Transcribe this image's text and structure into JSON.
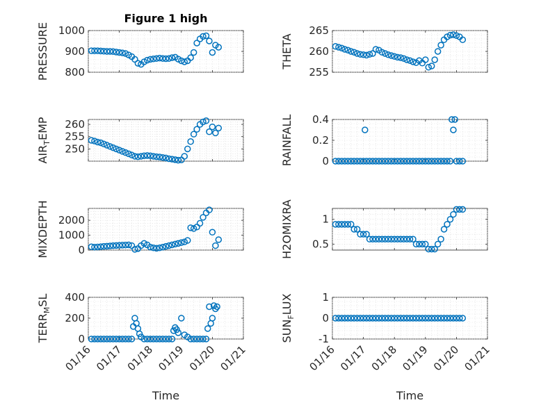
{
  "title": "Figure 1 high",
  "colors": {
    "series": "#0072bd",
    "axis": "#262626",
    "grid": "#d9d9d9"
  },
  "chart_data": [
    {
      "id": "pressure",
      "type": "scatter",
      "title": "Figure 1 high",
      "ylabel": "PRESSURE",
      "xlabel": "",
      "xlim": [
        0,
        5
      ],
      "ylim": [
        800,
        1000
      ],
      "yticks": [
        800,
        900,
        1000
      ],
      "xticks": [
        0,
        1,
        2,
        3,
        4,
        5
      ],
      "xticklabels": [
        "01/16",
        "01/17",
        "01/18",
        "01/19",
        "01/20",
        "01/21"
      ],
      "show_xticklabels": false,
      "grid": true,
      "x": [
        0.1,
        0.2,
        0.3,
        0.4,
        0.5,
        0.6,
        0.7,
        0.8,
        0.9,
        1.0,
        1.1,
        1.2,
        1.3,
        1.4,
        1.5,
        1.6,
        1.7,
        1.8,
        1.9,
        2.0,
        2.1,
        2.2,
        2.3,
        2.4,
        2.5,
        2.6,
        2.7,
        2.8,
        2.9,
        3.0,
        3.1,
        3.2,
        3.3,
        3.4,
        3.5,
        3.6,
        3.7,
        3.8,
        3.9,
        4.0,
        4.1,
        4.2
      ],
      "y": [
        903,
        903,
        903,
        902,
        901,
        900,
        900,
        899,
        897,
        895,
        893,
        890,
        883,
        875,
        862,
        843,
        838,
        850,
        858,
        862,
        864,
        866,
        868,
        866,
        865,
        866,
        870,
        872,
        863,
        855,
        850,
        855,
        870,
        895,
        940,
        960,
        972,
        975,
        950,
        895,
        930,
        920
      ]
    },
    {
      "id": "theta",
      "type": "scatter",
      "title": "",
      "ylabel": "THETA",
      "xlabel": "",
      "xlim": [
        0,
        5
      ],
      "ylim": [
        255,
        265
      ],
      "yticks": [
        255,
        260,
        265
      ],
      "xticks": [
        0,
        1,
        2,
        3,
        4,
        5
      ],
      "xticklabels": [
        "01/16",
        "01/17",
        "01/18",
        "01/19",
        "01/20",
        "01/21"
      ],
      "show_xticklabels": false,
      "grid": true,
      "x": [
        0.1,
        0.2,
        0.3,
        0.4,
        0.5,
        0.6,
        0.7,
        0.8,
        0.9,
        1.0,
        1.1,
        1.2,
        1.3,
        1.4,
        1.5,
        1.6,
        1.7,
        1.8,
        1.9,
        2.0,
        2.1,
        2.2,
        2.3,
        2.4,
        2.5,
        2.6,
        2.7,
        2.8,
        2.9,
        3.0,
        3.1,
        3.2,
        3.3,
        3.4,
        3.5,
        3.6,
        3.7,
        3.8,
        3.9,
        4.0,
        4.1,
        4.2
      ],
      "y": [
        261.2,
        261.0,
        260.8,
        260.5,
        260.3,
        260.0,
        259.8,
        259.5,
        259.3,
        259.2,
        259.1,
        259.3,
        259.5,
        260.5,
        260.3,
        259.8,
        259.5,
        259.2,
        259.0,
        258.8,
        258.6,
        258.5,
        258.3,
        258.0,
        257.8,
        257.5,
        257.3,
        257.8,
        257.2,
        258.0,
        256.2,
        256.5,
        258.0,
        260.0,
        261.5,
        262.8,
        263.5,
        263.9,
        264.0,
        263.8,
        263.5,
        262.8
      ]
    },
    {
      "id": "air_temp",
      "type": "scatter",
      "title": "",
      "ylabel": "AIR_TEMP",
      "xlabel": "",
      "xlim": [
        0,
        5
      ],
      "ylim": [
        245,
        262
      ],
      "yticks": [
        250,
        255,
        260
      ],
      "xticks": [
        0,
        1,
        2,
        3,
        4,
        5
      ],
      "xticklabels": [
        "01/16",
        "01/17",
        "01/18",
        "01/19",
        "01/20",
        "01/21"
      ],
      "show_xticklabels": false,
      "grid": true,
      "x": [
        0.1,
        0.2,
        0.3,
        0.4,
        0.5,
        0.6,
        0.7,
        0.8,
        0.9,
        1.0,
        1.1,
        1.2,
        1.3,
        1.4,
        1.5,
        1.6,
        1.7,
        1.8,
        1.9,
        2.0,
        2.1,
        2.2,
        2.3,
        2.4,
        2.5,
        2.6,
        2.7,
        2.8,
        2.9,
        3.0,
        3.1,
        3.2,
        3.3,
        3.4,
        3.5,
        3.6,
        3.7,
        3.8,
        3.9,
        4.0,
        4.1,
        4.2
      ],
      "y": [
        253.5,
        253.2,
        252.8,
        252.5,
        252.0,
        251.5,
        251.0,
        250.5,
        250.0,
        249.5,
        249.0,
        248.5,
        248.0,
        247.5,
        247.0,
        246.8,
        247.0,
        247.2,
        247.3,
        247.2,
        247.0,
        246.8,
        246.7,
        246.5,
        246.3,
        246.0,
        245.8,
        245.6,
        245.4,
        245.5,
        247.0,
        250.0,
        253.0,
        256.0,
        258.0,
        260.0,
        261.0,
        261.5,
        257.0,
        259.0,
        256.5,
        258.5
      ]
    },
    {
      "id": "rainfall",
      "type": "scatter",
      "title": "",
      "ylabel": "RAINFALL",
      "xlabel": "",
      "xlim": [
        0,
        5
      ],
      "ylim": [
        0,
        0.4
      ],
      "yticks": [
        0,
        0.2,
        0.4
      ],
      "xticks": [
        0,
        1,
        2,
        3,
        4,
        5
      ],
      "xticklabels": [
        "01/16",
        "01/17",
        "01/18",
        "01/19",
        "01/20",
        "01/21"
      ],
      "show_xticklabels": false,
      "grid": true,
      "x": [
        0.1,
        0.2,
        0.3,
        0.4,
        0.5,
        0.6,
        0.7,
        0.8,
        0.9,
        1.0,
        1.05,
        1.1,
        1.2,
        1.3,
        1.4,
        1.5,
        1.6,
        1.7,
        1.8,
        1.9,
        2.0,
        2.1,
        2.2,
        2.3,
        2.4,
        2.5,
        2.6,
        2.7,
        2.8,
        2.9,
        3.0,
        3.1,
        3.2,
        3.3,
        3.4,
        3.5,
        3.6,
        3.7,
        3.8,
        3.85,
        3.9,
        3.95,
        4.0,
        4.1,
        4.2
      ],
      "y": [
        0,
        0,
        0,
        0,
        0,
        0,
        0,
        0,
        0,
        0,
        0.3,
        0,
        0,
        0,
        0,
        0,
        0,
        0,
        0,
        0,
        0,
        0,
        0,
        0,
        0,
        0,
        0,
        0,
        0,
        0,
        0,
        0,
        0,
        0,
        0,
        0,
        0,
        0,
        0,
        0.4,
        0.3,
        0.4,
        0,
        0,
        0
      ]
    },
    {
      "id": "mixdepth",
      "type": "scatter",
      "title": "",
      "ylabel": "MIXDEPTH",
      "xlabel": "",
      "xlim": [
        0,
        5
      ],
      "ylim": [
        0,
        2800
      ],
      "yticks": [
        0,
        1000,
        2000
      ],
      "xticks": [
        0,
        1,
        2,
        3,
        4,
        5
      ],
      "xticklabels": [
        "01/16",
        "01/17",
        "01/18",
        "01/19",
        "01/20",
        "01/21"
      ],
      "show_xticklabels": false,
      "grid": true,
      "x": [
        0.1,
        0.2,
        0.3,
        0.4,
        0.5,
        0.6,
        0.7,
        0.8,
        0.9,
        1.0,
        1.1,
        1.2,
        1.3,
        1.4,
        1.5,
        1.6,
        1.7,
        1.8,
        1.9,
        2.0,
        2.1,
        2.2,
        2.3,
        2.4,
        2.5,
        2.6,
        2.7,
        2.8,
        2.9,
        3.0,
        3.1,
        3.2,
        3.3,
        3.4,
        3.5,
        3.6,
        3.7,
        3.8,
        3.9,
        4.0,
        4.1,
        4.2
      ],
      "y": [
        220,
        200,
        210,
        230,
        250,
        260,
        280,
        300,
        310,
        320,
        330,
        340,
        350,
        300,
        50,
        100,
        300,
        450,
        350,
        200,
        150,
        120,
        150,
        200,
        250,
        300,
        350,
        400,
        450,
        500,
        550,
        650,
        1500,
        1450,
        1550,
        1800,
        2200,
        2500,
        2700,
        1200,
        300,
        700
      ]
    },
    {
      "id": "h2omixra",
      "type": "scatter",
      "title": "",
      "ylabel": "H2OMIXRA",
      "xlabel": "",
      "xlim": [
        0,
        5
      ],
      "ylim": [
        0.38,
        1.22
      ],
      "yticks": [
        0.5,
        1
      ],
      "xticks": [
        0,
        1,
        2,
        3,
        4,
        5
      ],
      "xticklabels": [
        "01/16",
        "01/17",
        "01/18",
        "01/19",
        "01/20",
        "01/21"
      ],
      "show_xticklabels": false,
      "grid": true,
      "x": [
        0.1,
        0.2,
        0.3,
        0.4,
        0.5,
        0.6,
        0.7,
        0.8,
        0.9,
        1.0,
        1.1,
        1.2,
        1.3,
        1.4,
        1.5,
        1.6,
        1.7,
        1.8,
        1.9,
        2.0,
        2.1,
        2.2,
        2.3,
        2.4,
        2.5,
        2.6,
        2.7,
        2.8,
        2.9,
        3.0,
        3.1,
        3.2,
        3.3,
        3.4,
        3.5,
        3.6,
        3.7,
        3.8,
        3.9,
        4.0,
        4.1,
        4.2
      ],
      "y": [
        0.9,
        0.9,
        0.9,
        0.9,
        0.9,
        0.9,
        0.8,
        0.8,
        0.7,
        0.7,
        0.7,
        0.6,
        0.6,
        0.6,
        0.6,
        0.6,
        0.6,
        0.6,
        0.6,
        0.6,
        0.6,
        0.6,
        0.6,
        0.6,
        0.6,
        0.6,
        0.5,
        0.5,
        0.5,
        0.5,
        0.4,
        0.4,
        0.4,
        0.5,
        0.6,
        0.8,
        0.9,
        1.0,
        1.1,
        1.2,
        1.2,
        1.2
      ]
    },
    {
      "id": "terr_msl",
      "type": "scatter",
      "title": "",
      "ylabel": "TERR_MSL",
      "xlabel": "Time",
      "xlim": [
        0,
        5
      ],
      "ylim": [
        0,
        400
      ],
      "yticks": [
        0,
        200,
        400
      ],
      "xticks": [
        0,
        1,
        2,
        3,
        4,
        5
      ],
      "xticklabels": [
        "01/16",
        "01/17",
        "01/18",
        "01/19",
        "01/20",
        "01/21"
      ],
      "show_xticklabels": true,
      "grid": true,
      "x": [
        0.1,
        0.2,
        0.3,
        0.4,
        0.5,
        0.6,
        0.7,
        0.8,
        0.9,
        1.0,
        1.1,
        1.2,
        1.3,
        1.4,
        1.45,
        1.5,
        1.55,
        1.6,
        1.65,
        1.7,
        1.8,
        1.9,
        2.0,
        2.1,
        2.2,
        2.3,
        2.4,
        2.5,
        2.6,
        2.7,
        2.75,
        2.8,
        2.85,
        2.9,
        3.0,
        3.1,
        3.2,
        3.3,
        3.4,
        3.5,
        3.6,
        3.7,
        3.8,
        3.85,
        3.9,
        3.95,
        4.0,
        4.05,
        4.1,
        4.15
      ],
      "y": [
        0,
        0,
        0,
        0,
        0,
        0,
        0,
        0,
        0,
        0,
        0,
        0,
        0,
        0,
        120,
        200,
        150,
        100,
        50,
        20,
        0,
        0,
        0,
        0,
        0,
        0,
        0,
        0,
        0,
        0,
        80,
        110,
        90,
        60,
        200,
        40,
        20,
        0,
        0,
        0,
        0,
        0,
        0,
        100,
        310,
        150,
        200,
        320,
        290,
        310
      ]
    },
    {
      "id": "sun_flux",
      "type": "scatter",
      "title": "",
      "ylabel": "SUN_FLUX",
      "xlabel": "Time",
      "xlim": [
        0,
        5
      ],
      "ylim": [
        -1,
        1
      ],
      "yticks": [
        -1,
        0,
        1
      ],
      "xticks": [
        0,
        1,
        2,
        3,
        4,
        5
      ],
      "xticklabels": [
        "01/16",
        "01/17",
        "01/18",
        "01/19",
        "01/20",
        "01/21"
      ],
      "show_xticklabels": true,
      "grid": true,
      "x": [
        0.1,
        0.2,
        0.3,
        0.4,
        0.5,
        0.6,
        0.7,
        0.8,
        0.9,
        1.0,
        1.1,
        1.2,
        1.3,
        1.4,
        1.5,
        1.6,
        1.7,
        1.8,
        1.9,
        2.0,
        2.1,
        2.2,
        2.3,
        2.4,
        2.5,
        2.6,
        2.7,
        2.8,
        2.9,
        3.0,
        3.1,
        3.2,
        3.3,
        3.4,
        3.5,
        3.6,
        3.7,
        3.8,
        3.9,
        4.0,
        4.1,
        4.2
      ],
      "y": [
        0,
        0,
        0,
        0,
        0,
        0,
        0,
        0,
        0,
        0,
        0,
        0,
        0,
        0,
        0,
        0,
        0,
        0,
        0,
        0,
        0,
        0,
        0,
        0,
        0,
        0,
        0,
        0,
        0,
        0,
        0,
        0,
        0,
        0,
        0,
        0,
        0,
        0,
        0,
        0,
        0,
        0
      ]
    }
  ]
}
